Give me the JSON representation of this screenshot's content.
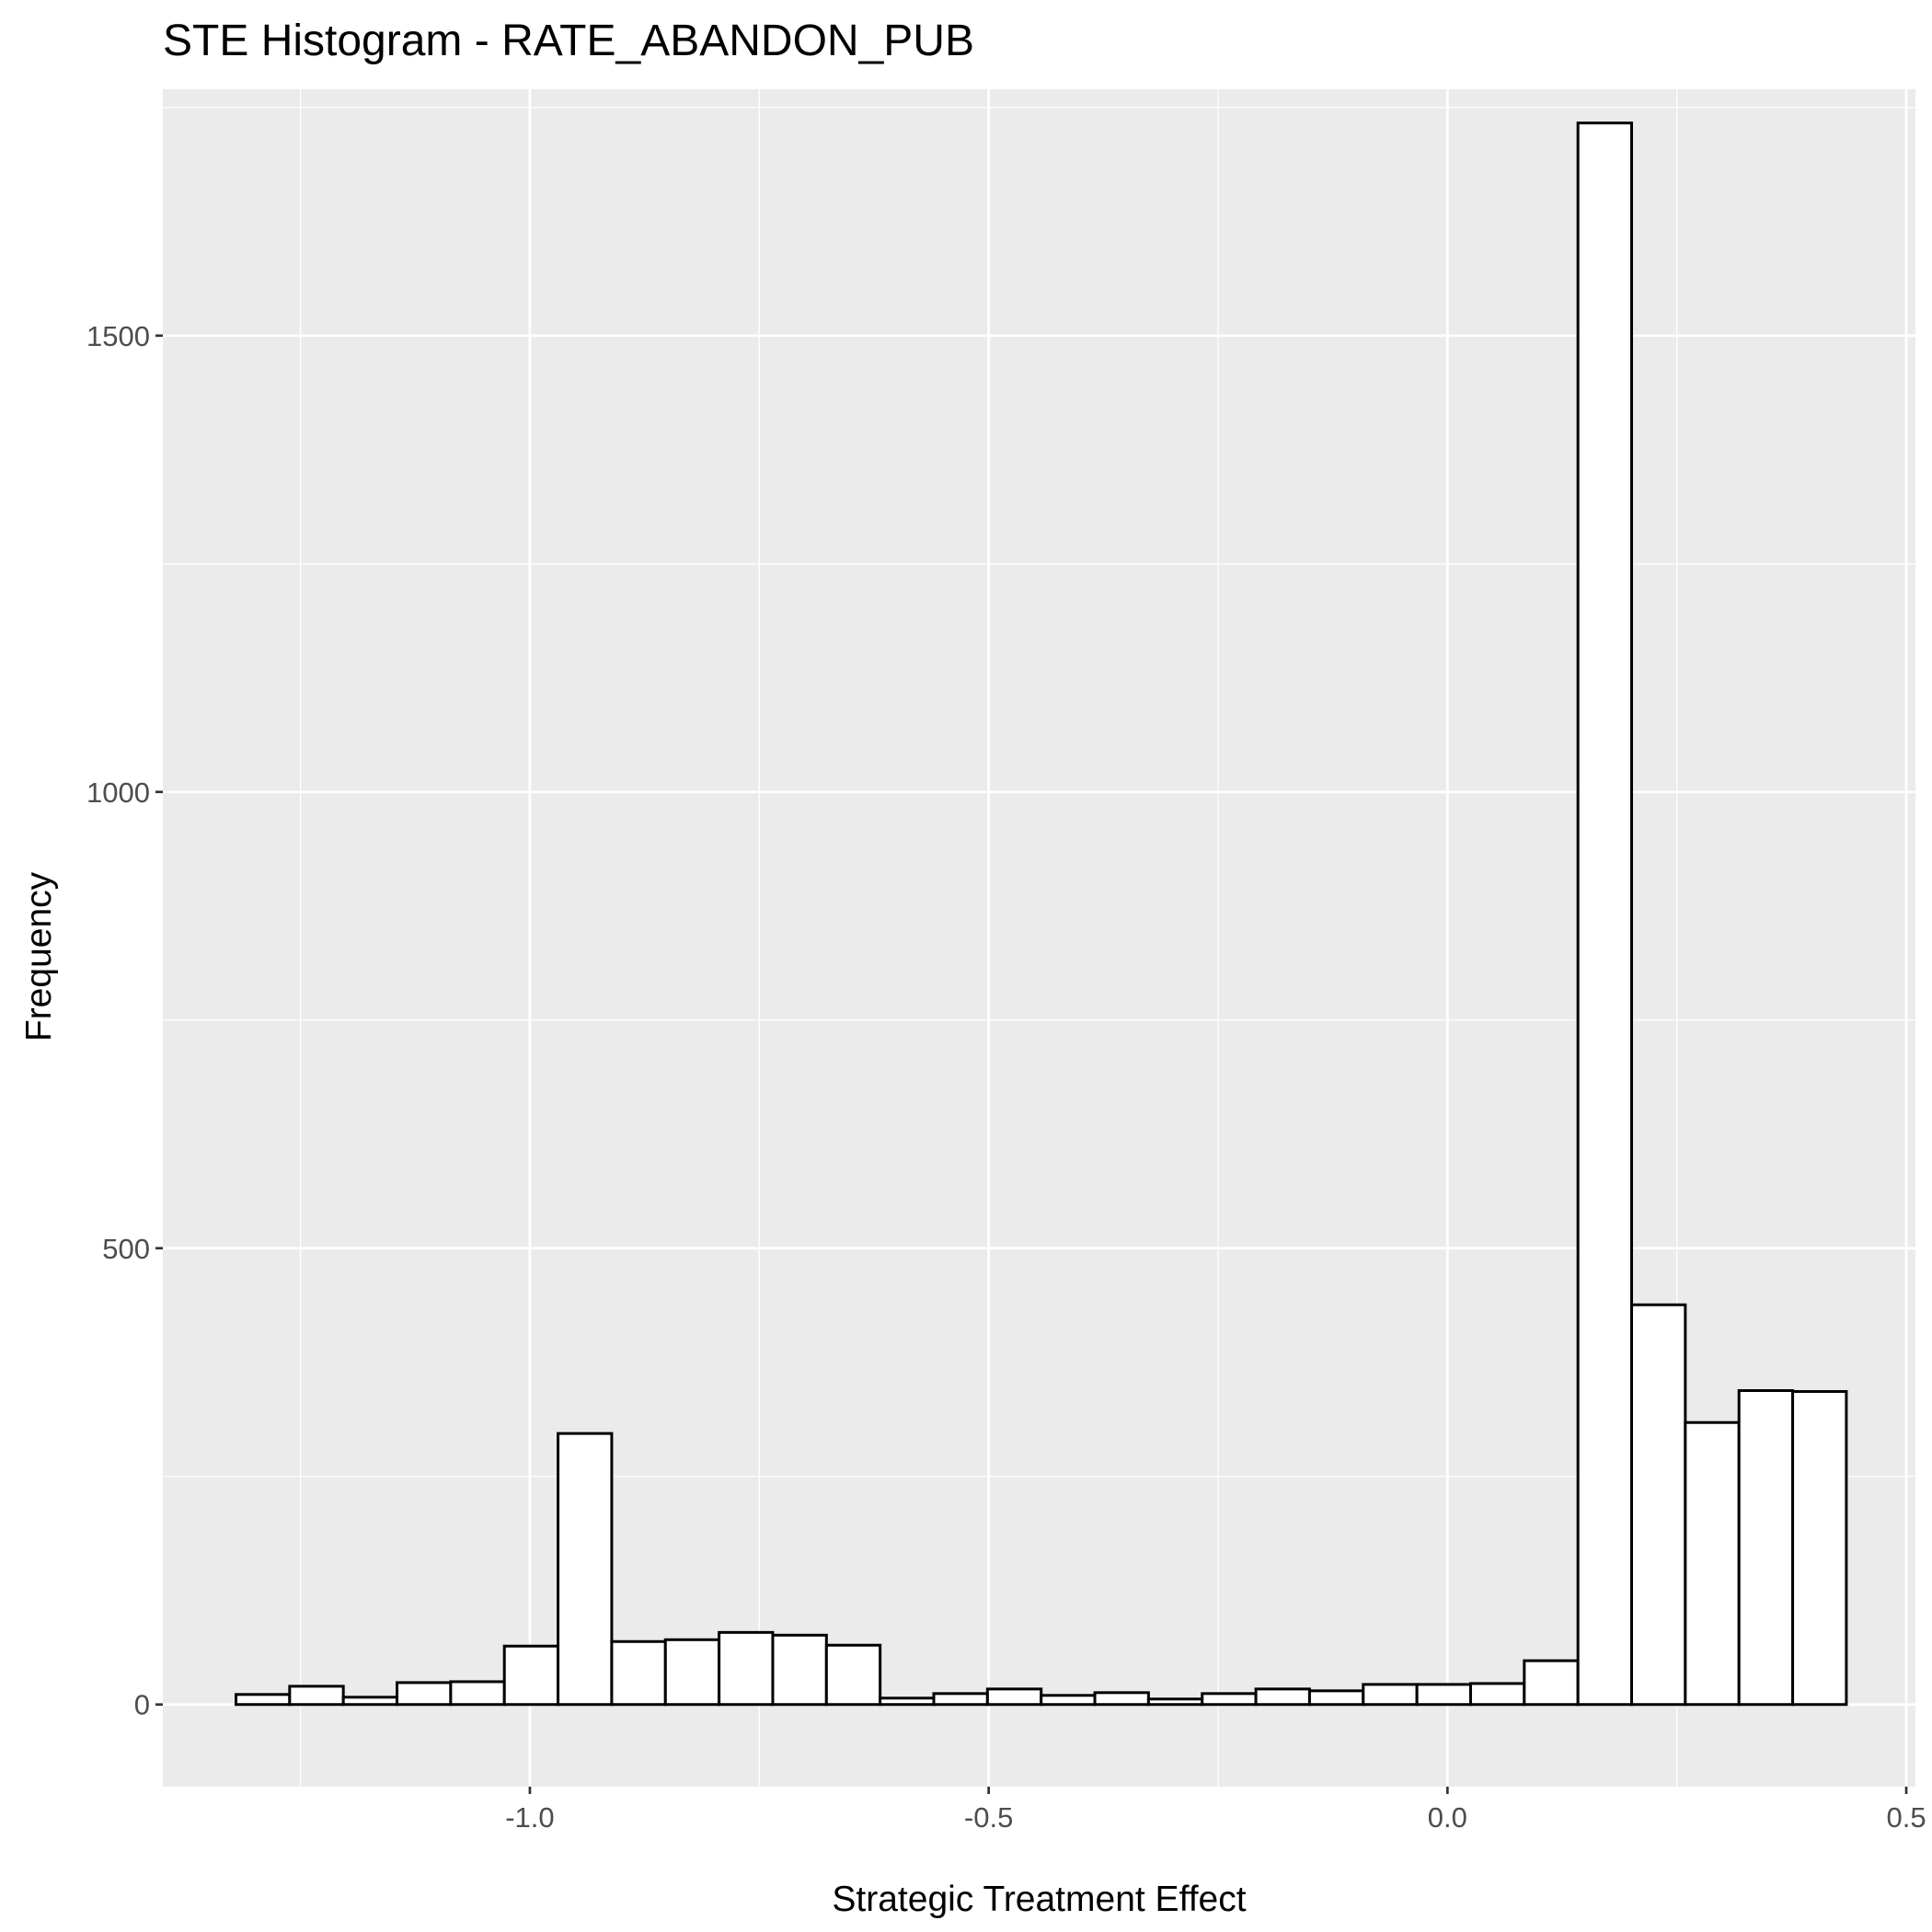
{
  "chart_data": {
    "type": "bar",
    "title": "STE Histogram -  RATE_ABANDON_PUB",
    "xlabel": "Strategic Treatment Effect",
    "ylabel": "Frequency",
    "xlim": [
      -1.4,
      0.51
    ],
    "ylim": [
      -90,
      1770
    ],
    "x_ticks": [
      -1.0,
      -0.5,
      0.0,
      0.5
    ],
    "x_tick_labels": [
      "-1.0",
      "-0.5",
      "0.0",
      "0.5"
    ],
    "y_ticks": [
      0,
      500,
      1000,
      1500
    ],
    "y_tick_labels": [
      "0",
      "500",
      "1000",
      "1500"
    ],
    "grid": true,
    "bin_width": 0.0585,
    "bin_start": -1.3203,
    "values": [
      11,
      20,
      8,
      24,
      25,
      64,
      297,
      69,
      71,
      79,
      76,
      65,
      7,
      12,
      17,
      10,
      13,
      6,
      12,
      17,
      15,
      22,
      22,
      23,
      48,
      1733,
      438,
      309,
      344,
      343
    ],
    "colors": {
      "panel": "#ebebeb",
      "grid_major": "#ffffff",
      "bar_fill": "#ffffff",
      "bar_stroke": "#000000"
    }
  }
}
